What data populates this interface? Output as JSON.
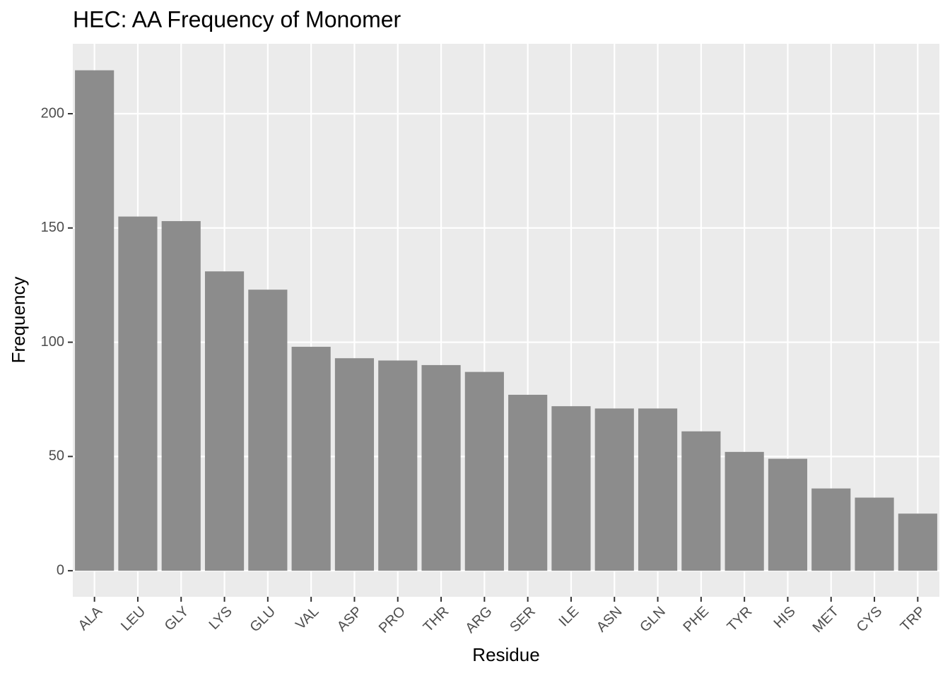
{
  "chart_data": {
    "type": "bar",
    "title": "HEC: AA Frequency of Monomer",
    "x_label": "Residue",
    "y_label": "Frequency",
    "categories": [
      "ALA",
      "LEU",
      "GLY",
      "LYS",
      "GLU",
      "VAL",
      "ASP",
      "PRO",
      "THR",
      "ARG",
      "SER",
      "ILE",
      "ASN",
      "GLN",
      "PHE",
      "TYR",
      "HIS",
      "MET",
      "CYS",
      "TRP"
    ],
    "values": [
      219,
      155,
      153,
      131,
      123,
      98,
      93,
      92,
      90,
      87,
      77,
      72,
      71,
      71,
      61,
      52,
      49,
      36,
      32,
      25
    ],
    "color": "#8c8c8c",
    "ylim": [
      -11.4,
      230.6
    ],
    "yticks": [
      0,
      50,
      100,
      150,
      200
    ],
    "grid": true
  }
}
